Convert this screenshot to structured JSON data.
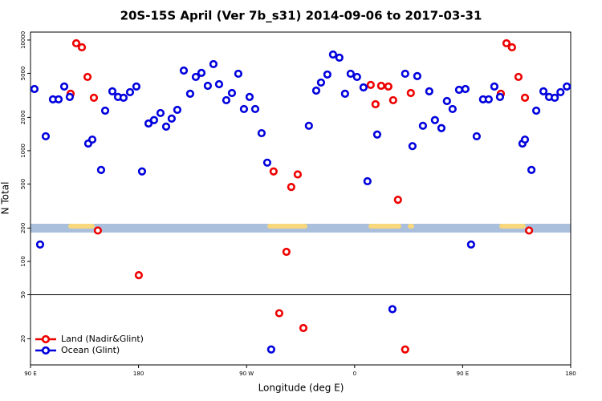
{
  "chart_data": {
    "type": "scatter",
    "title": "20S-15S April (Ver 7b_s31)   2014-09-06 to 2017-03-31",
    "xlabel": "Longitude (deg E)",
    "ylabel": "N Total",
    "xlim": [
      90,
      540
    ],
    "ylim": [
      11.6,
      11800
    ],
    "log_y": true,
    "xticks": [
      {
        "value": 90,
        "label": "90 E"
      },
      180,
      {
        "value": 270,
        "label": "90 W"
      },
      {
        "value": 360,
        "label": "0"
      },
      {
        "value": 450,
        "label": "90 E"
      },
      {
        "value": 540,
        "label": "180"
      }
    ],
    "yticks": [
      20,
      50,
      100,
      200,
      500,
      1000,
      2000,
      5000,
      10000
    ],
    "legend": "lower left",
    "series": [
      {
        "name": "Land (Nadir&Glint)",
        "color": "#ee0000",
        "x": [
          128.1,
          132.8,
          137.5,
          123.4,
          142.8,
          146.1,
          180.2,
          292.5,
          297.2,
          303.2,
          307.2,
          312.6,
          317.3,
          373.4,
          377.4,
          382.1,
          388.1,
          392.1,
          396.1,
          402.1,
          406.8,
          486.5,
          491.1,
          496.5,
          481.8,
          501.9,
          505.3
        ],
        "values": [
          9350,
          8600,
          4640,
          3270,
          3010,
          190,
          75,
          650,
          34,
          122,
          470,
          610,
          25,
          3930,
          2630,
          3860,
          3800,
          2860,
          360,
          16,
          3320,
          9350,
          8600,
          4640,
          3270,
          3010,
          190
        ]
      },
      {
        "name": "Ocean (Glint)",
        "color": "#0000dd",
        "x": [
          93.3,
          98,
          102.7,
          108.7,
          113.4,
          118.1,
          122.7,
          138.1,
          141.5,
          148.8,
          152.2,
          158.2,
          162.9,
          167.5,
          172.9,
          178.2,
          182.9,
          188.3,
          192.9,
          198.3,
          203,
          207.6,
          212.3,
          217.7,
          223,
          227.7,
          232.4,
          237.7,
          242.4,
          247.1,
          253.1,
          257.8,
          263.1,
          267.8,
          272.5,
          277.2,
          282.5,
          287.2,
          290.5,
          321.9,
          328,
          332,
          337.3,
          342,
          347.3,
          352,
          356.7,
          362,
          367.4,
          370.7,
          378.8,
          391.5,
          402.1,
          408.2,
          412.2,
          416.9,
          422.2,
          426.9,
          432.3,
          436.9,
          441.6,
          447,
          452.3,
          457,
          461.7,
          467,
          471.7,
          476.4,
          481.1,
          499.8,
          501.9,
          507.3,
          511.3,
          517.3,
          522,
          526.7,
          531.5,
          536.8
        ],
        "values": [
          3610,
          142,
          1350,
          2910,
          2910,
          3800,
          3060,
          1160,
          1260,
          670,
          2300,
          3440,
          3060,
          3010,
          3380,
          3800,
          650,
          1760,
          1890,
          2190,
          1650,
          1950,
          2340,
          5300,
          3270,
          4640,
          5050,
          3860,
          6060,
          3990,
          2860,
          3320,
          4960,
          2380,
          3060,
          2380,
          1440,
          780,
          16,
          1680,
          3490,
          4130,
          4880,
          7400,
          6930,
          3270,
          4960,
          4640,
          3730,
          530,
          1400,
          37,
          4960,
          1100,
          4720,
          1680,
          3440,
          1890,
          1600,
          2810,
          2380,
          3550,
          3610,
          142,
          1350,
          2910,
          2910,
          3800,
          3060,
          1160,
          1260,
          670,
          2300,
          3440,
          3060,
          3010,
          3380,
          3800
        ]
      }
    ]
  }
}
